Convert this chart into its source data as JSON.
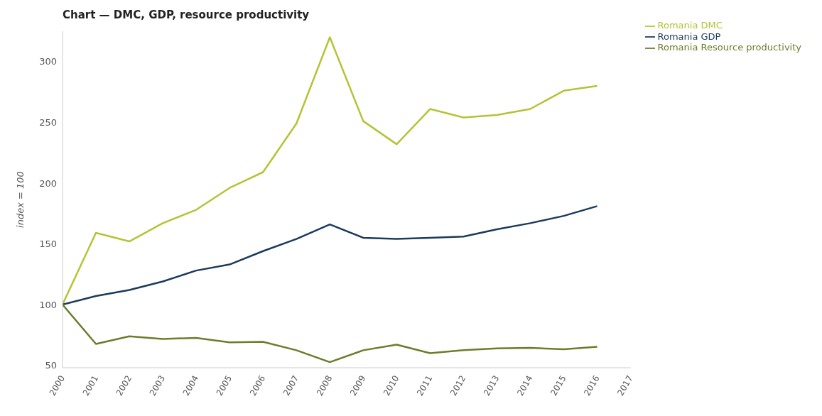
{
  "chart_data": {
    "type": "line",
    "title": "Chart — DMC, GDP, resource productivity",
    "ylabel": "index = 100",
    "x": [
      2000,
      2001,
      2002,
      2003,
      2004,
      2005,
      2006,
      2007,
      2008,
      2009,
      2010,
      2011,
      2012,
      2013,
      2014,
      2015,
      2016
    ],
    "series": [
      {
        "name": "Romania DMC",
        "color": "#b5c334",
        "values": [
          100,
          159,
          152,
          167,
          178,
          196,
          209,
          249,
          320,
          251,
          232,
          261,
          254,
          256,
          261,
          276,
          280
        ]
      },
      {
        "name": "Romania GDP",
        "color": "#1c3a5a",
        "values": [
          100,
          107,
          112,
          119,
          128,
          133,
          144,
          154,
          166,
          155,
          154,
          155,
          156,
          162,
          167,
          173,
          181
        ]
      },
      {
        "name": "Romania Resource productivity",
        "color": "#6b7d2a",
        "values": [
          100,
          67.6,
          73.9,
          71.7,
          72.6,
          68.9,
          69.3,
          62.4,
          52.6,
          62.4,
          67,
          60,
          62.4,
          63.9,
          64.3,
          63.2,
          65.2
        ]
      }
    ],
    "xlim": [
      2000,
      2017
    ],
    "xticks": [
      2000,
      2001,
      2002,
      2003,
      2004,
      2005,
      2006,
      2007,
      2008,
      2009,
      2010,
      2011,
      2012,
      2013,
      2014,
      2015,
      2016,
      2017
    ],
    "ylim": [
      48,
      325
    ],
    "yticks": [
      50,
      100,
      150,
      200,
      250,
      300
    ],
    "grid": false,
    "legend": "top right",
    "marker": "none",
    "line_style": "solid"
  }
}
